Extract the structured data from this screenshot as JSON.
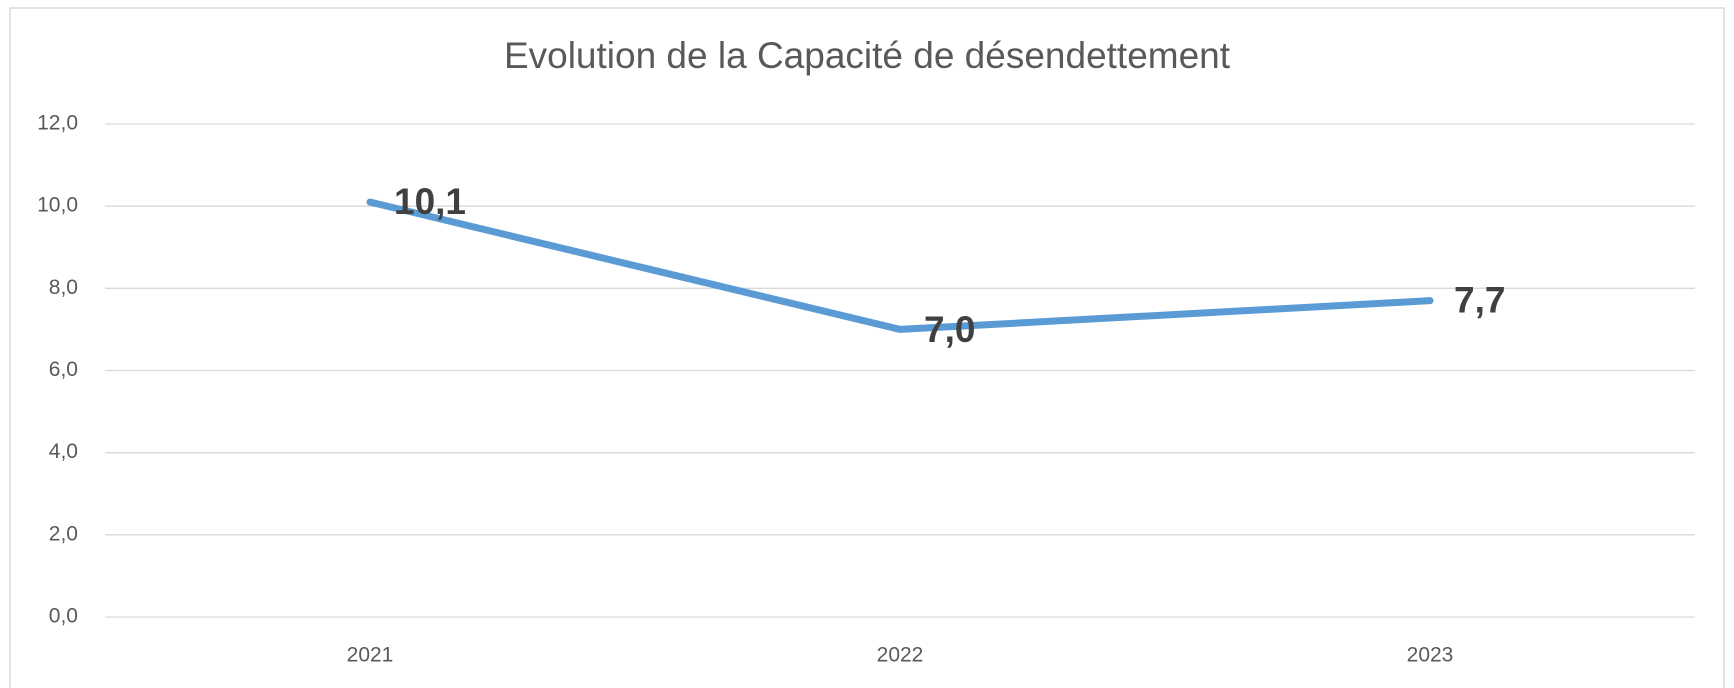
{
  "chart_data": {
    "type": "line",
    "title": "Evolution de la Capacité de désendettement",
    "categories": [
      "2021",
      "2022",
      "2023"
    ],
    "series": [
      {
        "name": "Capacité de désendettement",
        "color": "#5b9bd5",
        "values": [
          10.1,
          7.0,
          7.7
        ],
        "value_labels": [
          "10,1",
          "7,0",
          "7,7"
        ]
      }
    ],
    "ylim": [
      0,
      12
    ],
    "yticks": [
      {
        "value": 0,
        "label": "0,0"
      },
      {
        "value": 2,
        "label": "2,0"
      },
      {
        "value": 4,
        "label": "4,0"
      },
      {
        "value": 6,
        "label": "6,0"
      },
      {
        "value": 8,
        "label": "8,0"
      },
      {
        "value": 10,
        "label": "10,0"
      },
      {
        "value": 12,
        "label": "12,0"
      }
    ],
    "grid": true
  }
}
